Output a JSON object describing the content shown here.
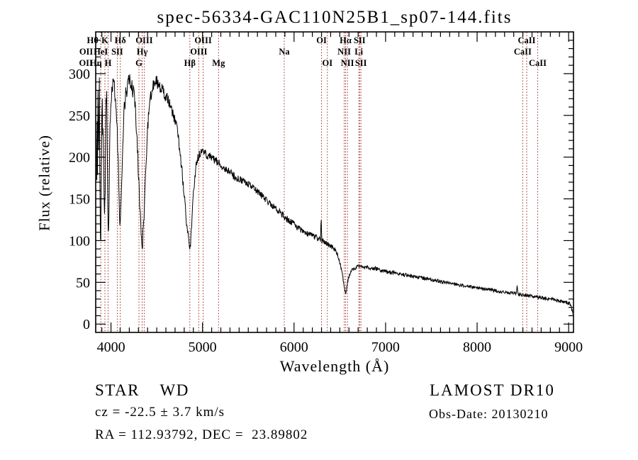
{
  "title": "spec-56334-GAC110N25B1_sp07-144.fits",
  "axes": {
    "xlabel": "Wavelength (Å)",
    "ylabel": "Flux (relative)"
  },
  "annotations": {
    "class_line": "STAR    WD",
    "cz_line": "cz = -22.5 ± 3.7 km/s",
    "radec_line": "RA = 112.93792, DEC =  23.89802",
    "survey": "LAMOST DR10",
    "obs_date": "Obs-Date: 20130210"
  },
  "chart_data": {
    "type": "line",
    "title": "spec-56334-GAC110N25B1_sp07-144.fits",
    "xlabel": "Wavelength (Å)",
    "ylabel": "Flux (relative)",
    "xlim": [
      3833,
      9053
    ],
    "ylim": [
      -10,
      350
    ],
    "x_major_ticks": [
      4000,
      5000,
      6000,
      7000,
      8000,
      9000
    ],
    "x_minor_step": 100,
    "y_major_ticks": [
      0,
      50,
      100,
      150,
      200,
      250,
      300
    ],
    "y_minor_step": 10,
    "grid": false,
    "legend": "none",
    "line_color": "#000000",
    "marker_color": "#9e332e",
    "spectral_lines": [
      {
        "label": "OII",
        "wavelength": 3726.03,
        "row": 3
      },
      {
        "label": "OII",
        "wavelength": 3728.82,
        "row": 2
      },
      {
        "label": "Hθ",
        "wavelength": 3798.98,
        "row": 1
      },
      {
        "label": "Hη",
        "wavelength": 3835.38,
        "row": 3
      },
      {
        "label": "HeI",
        "wavelength": 3888.65,
        "row": 2
      },
      {
        "label": "K",
        "wavelength": 3933.66,
        "row": 1
      },
      {
        "label": "H",
        "wavelength": 3968.47,
        "row": 3
      },
      {
        "label": "SII",
        "wavelength": 4068.6,
        "row": 2
      },
      {
        "label": "Hδ",
        "wavelength": 4101.74,
        "row": 1
      },
      {
        "label": "G",
        "wavelength": 4305.61,
        "row": 3
      },
      {
        "label": "Hγ",
        "wavelength": 4340.47,
        "row": 2
      },
      {
        "label": "OIII",
        "wavelength": 4363.21,
        "row": 1
      },
      {
        "label": "Hβ",
        "wavelength": 4861.33,
        "row": 3
      },
      {
        "label": "OIII",
        "wavelength": 4958.92,
        "row": 2
      },
      {
        "label": "OIII",
        "wavelength": 5006.84,
        "row": 1
      },
      {
        "label": "Mg",
        "wavelength": 5175.36,
        "row": 3
      },
      {
        "label": "Na",
        "wavelength": 5893.0,
        "row": 2
      },
      {
        "label": "OI",
        "wavelength": 6300.3,
        "row": 1
      },
      {
        "label": "OI",
        "wavelength": 6363.78,
        "row": 3
      },
      {
        "label": "NII",
        "wavelength": 6548.03,
        "row": 2
      },
      {
        "label": "Hα",
        "wavelength": 6562.8,
        "row": 1
      },
      {
        "label": "NII",
        "wavelength": 6583.41,
        "row": 3
      },
      {
        "label": "Li",
        "wavelength": 6707.89,
        "row": 2
      },
      {
        "label": "SII",
        "wavelength": 6716.44,
        "row": 1
      },
      {
        "label": "SII",
        "wavelength": 6730.81,
        "row": 3
      },
      {
        "label": "CaII",
        "wavelength": 8498.03,
        "row": 2
      },
      {
        "label": "CaII",
        "wavelength": 8542.09,
        "row": 1
      },
      {
        "label": "CaII",
        "wavelength": 8662.14,
        "row": 3
      }
    ],
    "series": [
      {
        "name": "flux",
        "anchors": [
          [
            3833,
            150
          ],
          [
            3838,
            235
          ],
          [
            3843,
            125
          ],
          [
            3848,
            270
          ],
          [
            3853,
            170
          ],
          [
            3858,
            295
          ],
          [
            3863,
            205
          ],
          [
            3868,
            255
          ],
          [
            3873,
            300
          ],
          [
            3878,
            170
          ],
          [
            3883,
            120
          ],
          [
            3889,
            100
          ],
          [
            3894,
            175
          ],
          [
            3899,
            245
          ],
          [
            3904,
            272
          ],
          [
            3909,
            215
          ],
          [
            3914,
            258
          ],
          [
            3919,
            195
          ],
          [
            3924,
            158
          ],
          [
            3930,
            128
          ],
          [
            3936,
            150
          ],
          [
            3941,
            225
          ],
          [
            3946,
            268
          ],
          [
            3951,
            278
          ],
          [
            3956,
            248
          ],
          [
            3961,
            198
          ],
          [
            3966,
            138
          ],
          [
            3971,
            112
          ],
          [
            3976,
            132
          ],
          [
            3982,
            180
          ],
          [
            3990,
            238
          ],
          [
            4000,
            268
          ],
          [
            4010,
            282
          ],
          [
            4020,
            288
          ],
          [
            4035,
            282
          ],
          [
            4050,
            268
          ],
          [
            4065,
            242
          ],
          [
            4080,
            188
          ],
          [
            4092,
            140
          ],
          [
            4102,
            112
          ],
          [
            4112,
            148
          ],
          [
            4126,
            205
          ],
          [
            4143,
            255
          ],
          [
            4160,
            275
          ],
          [
            4180,
            286
          ],
          [
            4200,
            290
          ],
          [
            4220,
            287
          ],
          [
            4240,
            280
          ],
          [
            4258,
            268
          ],
          [
            4276,
            242
          ],
          [
            4295,
            195
          ],
          [
            4312,
            148
          ],
          [
            4328,
            108
          ],
          [
            4341,
            95
          ],
          [
            4354,
            110
          ],
          [
            4368,
            148
          ],
          [
            4385,
            198
          ],
          [
            4403,
            238
          ],
          [
            4423,
            262
          ],
          [
            4443,
            278
          ],
          [
            4463,
            287
          ],
          [
            4483,
            291
          ],
          [
            4503,
            289
          ],
          [
            4523,
            285
          ],
          [
            4553,
            281
          ],
          [
            4593,
            274
          ],
          [
            4633,
            266
          ],
          [
            4673,
            254
          ],
          [
            4705,
            242
          ],
          [
            4730,
            228
          ],
          [
            4755,
            206
          ],
          [
            4780,
            178
          ],
          [
            4805,
            148
          ],
          [
            4830,
            116
          ],
          [
            4848,
            99
          ],
          [
            4862,
            90
          ],
          [
            4877,
            108
          ],
          [
            4893,
            142
          ],
          [
            4910,
            170
          ],
          [
            4928,
            188
          ],
          [
            4948,
            198
          ],
          [
            4968,
            204
          ],
          [
            4990,
            207
          ],
          [
            5015,
            206
          ],
          [
            5045,
            203
          ],
          [
            5085,
            200
          ],
          [
            5125,
            197
          ],
          [
            5165,
            194
          ],
          [
            5205,
            190
          ],
          [
            5255,
            186
          ],
          [
            5305,
            181
          ],
          [
            5355,
            176
          ],
          [
            5405,
            173
          ],
          [
            5455,
            170
          ],
          [
            5505,
            168
          ],
          [
            5555,
            163
          ],
          [
            5605,
            158
          ],
          [
            5655,
            153
          ],
          [
            5705,
            148
          ],
          [
            5755,
            143
          ],
          [
            5805,
            138
          ],
          [
            5855,
            133
          ],
          [
            5905,
            128
          ],
          [
            5955,
            123
          ],
          [
            6005,
            119
          ],
          [
            6055,
            114
          ],
          [
            6105,
            111
          ],
          [
            6155,
            108
          ],
          [
            6205,
            106
          ],
          [
            6245,
            104
          ],
          [
            6275,
            102
          ],
          [
            6289,
            101
          ],
          [
            6296,
            130
          ],
          [
            6303,
            100
          ],
          [
            6340,
            98
          ],
          [
            6380,
            95
          ],
          [
            6420,
            92
          ],
          [
            6455,
            88
          ],
          [
            6485,
            80
          ],
          [
            6510,
            70
          ],
          [
            6530,
            58
          ],
          [
            6548,
            47
          ],
          [
            6558,
            40
          ],
          [
            6564,
            37
          ],
          [
            6572,
            41
          ],
          [
            6585,
            50
          ],
          [
            6600,
            57
          ],
          [
            6618,
            62
          ],
          [
            6638,
            65
          ],
          [
            6658,
            67
          ],
          [
            6688,
            69
          ],
          [
            6718,
            69
          ],
          [
            6758,
            68
          ],
          [
            6800,
            68
          ],
          [
            6850,
            67
          ],
          [
            6900,
            66
          ],
          [
            6950,
            64
          ],
          [
            7000,
            63
          ],
          [
            7100,
            61
          ],
          [
            7200,
            59
          ],
          [
            7300,
            57
          ],
          [
            7400,
            55
          ],
          [
            7500,
            53
          ],
          [
            7600,
            51
          ],
          [
            7700,
            49
          ],
          [
            7800,
            47
          ],
          [
            7900,
            45
          ],
          [
            8000,
            44
          ],
          [
            8100,
            42
          ],
          [
            8200,
            40
          ],
          [
            8300,
            38
          ],
          [
            8390,
            37
          ],
          [
            8425,
            36
          ],
          [
            8437,
            45
          ],
          [
            8449,
            36
          ],
          [
            8500,
            35
          ],
          [
            8560,
            34
          ],
          [
            8620,
            33
          ],
          [
            8680,
            32
          ],
          [
            8740,
            31
          ],
          [
            8800,
            30
          ],
          [
            8860,
            29
          ],
          [
            8920,
            27
          ],
          [
            8970,
            26
          ],
          [
            9010,
            25
          ],
          [
            9030,
            20
          ],
          [
            9045,
            12
          ],
          [
            9053,
            8
          ]
        ]
      }
    ],
    "noise_profile": [
      [
        3833,
        18
      ],
      [
        3955,
        16
      ],
      [
        3990,
        12
      ],
      [
        4090,
        11
      ],
      [
        4290,
        10
      ],
      [
        4440,
        9
      ],
      [
        4600,
        7
      ],
      [
        4860,
        6
      ],
      [
        5000,
        5
      ],
      [
        5400,
        4.5
      ],
      [
        6000,
        4
      ],
      [
        6280,
        3.5
      ],
      [
        6560,
        2.5
      ],
      [
        7000,
        2.5
      ],
      [
        7500,
        2.2
      ],
      [
        8000,
        2.1
      ],
      [
        9053,
        2
      ]
    ]
  }
}
